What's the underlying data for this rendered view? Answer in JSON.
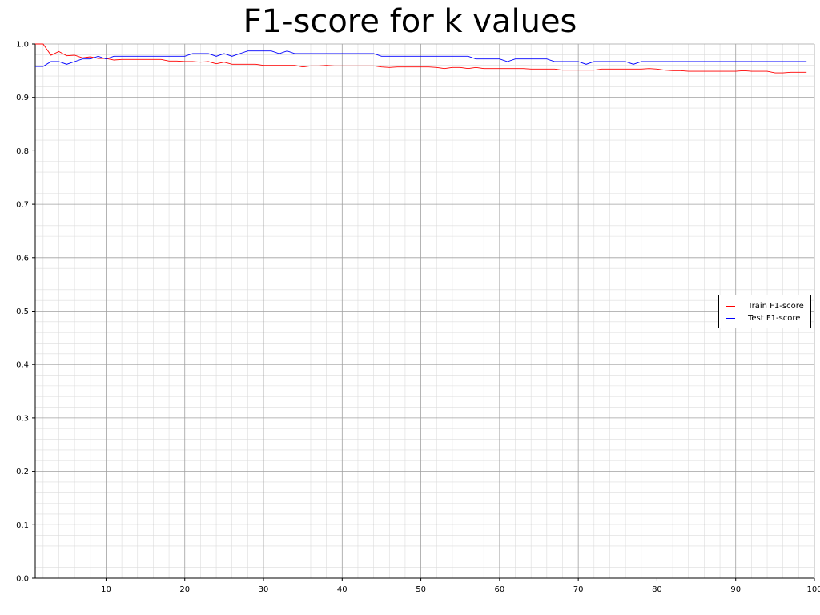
{
  "chart_data": {
    "type": "line",
    "title": "F1-score for k values",
    "xlabel": "",
    "ylabel": "",
    "xlim": [
      1,
      100
    ],
    "ylim": [
      0,
      1.0
    ],
    "x_ticks": [
      10,
      20,
      30,
      40,
      50,
      60,
      70,
      80,
      90,
      100
    ],
    "y_ticks": [
      0.0,
      0.1,
      0.2,
      0.3,
      0.4,
      0.5,
      0.6,
      0.7,
      0.8,
      0.9,
      1.0
    ],
    "grid": "major and minor",
    "legend_position": "center-right",
    "x": [
      1,
      2,
      3,
      4,
      5,
      6,
      7,
      8,
      9,
      10,
      11,
      12,
      13,
      14,
      15,
      16,
      17,
      18,
      19,
      20,
      21,
      22,
      23,
      24,
      25,
      26,
      27,
      28,
      29,
      30,
      31,
      32,
      33,
      34,
      35,
      36,
      37,
      38,
      39,
      40,
      41,
      42,
      43,
      44,
      45,
      46,
      47,
      48,
      49,
      50,
      51,
      52,
      53,
      54,
      55,
      56,
      57,
      58,
      59,
      60,
      61,
      62,
      63,
      64,
      65,
      66,
      67,
      68,
      69,
      70,
      71,
      72,
      73,
      74,
      75,
      76,
      77,
      78,
      79,
      80,
      81,
      82,
      83,
      84,
      85,
      86,
      87,
      88,
      89,
      90,
      91,
      92,
      93,
      94,
      95,
      96,
      97,
      98,
      99
    ],
    "series": [
      {
        "name": "Train F1-score",
        "color": "#ff0000",
        "values": [
          1.0,
          1.0,
          0.979,
          0.986,
          0.978,
          0.979,
          0.974,
          0.976,
          0.973,
          0.973,
          0.97,
          0.971,
          0.971,
          0.971,
          0.971,
          0.971,
          0.971,
          0.968,
          0.968,
          0.967,
          0.967,
          0.966,
          0.967,
          0.963,
          0.966,
          0.962,
          0.962,
          0.962,
          0.962,
          0.96,
          0.96,
          0.96,
          0.96,
          0.96,
          0.957,
          0.959,
          0.959,
          0.96,
          0.959,
          0.959,
          0.959,
          0.959,
          0.959,
          0.959,
          0.957,
          0.956,
          0.957,
          0.957,
          0.957,
          0.957,
          0.957,
          0.956,
          0.954,
          0.956,
          0.956,
          0.954,
          0.956,
          0.954,
          0.954,
          0.954,
          0.954,
          0.954,
          0.954,
          0.953,
          0.953,
          0.953,
          0.953,
          0.951,
          0.951,
          0.951,
          0.951,
          0.951,
          0.953,
          0.953,
          0.953,
          0.953,
          0.953,
          0.953,
          0.954,
          0.953,
          0.951,
          0.95,
          0.95,
          0.949,
          0.949,
          0.949,
          0.949,
          0.949,
          0.949,
          0.949,
          0.95,
          0.949,
          0.949,
          0.949,
          0.946,
          0.946,
          0.947,
          0.947,
          0.947
        ]
      },
      {
        "name": "Test F1-score",
        "color": "#0000ff",
        "values": [
          0.958,
          0.958,
          0.967,
          0.967,
          0.962,
          0.967,
          0.972,
          0.972,
          0.977,
          0.972,
          0.977,
          0.977,
          0.977,
          0.977,
          0.977,
          0.977,
          0.977,
          0.977,
          0.977,
          0.977,
          0.982,
          0.982,
          0.982,
          0.977,
          0.982,
          0.977,
          0.982,
          0.987,
          0.987,
          0.987,
          0.987,
          0.982,
          0.987,
          0.982,
          0.982,
          0.982,
          0.982,
          0.982,
          0.982,
          0.982,
          0.982,
          0.982,
          0.982,
          0.982,
          0.977,
          0.977,
          0.977,
          0.977,
          0.977,
          0.977,
          0.977,
          0.977,
          0.977,
          0.977,
          0.977,
          0.977,
          0.972,
          0.972,
          0.972,
          0.972,
          0.967,
          0.972,
          0.972,
          0.972,
          0.972,
          0.972,
          0.967,
          0.967,
          0.967,
          0.967,
          0.962,
          0.967,
          0.967,
          0.967,
          0.967,
          0.967,
          0.962,
          0.967,
          0.967,
          0.967,
          0.967,
          0.967,
          0.967,
          0.967,
          0.967,
          0.967,
          0.967,
          0.967,
          0.967,
          0.967,
          0.967,
          0.967,
          0.967,
          0.967,
          0.967,
          0.967,
          0.967,
          0.967,
          0.967
        ]
      }
    ]
  }
}
